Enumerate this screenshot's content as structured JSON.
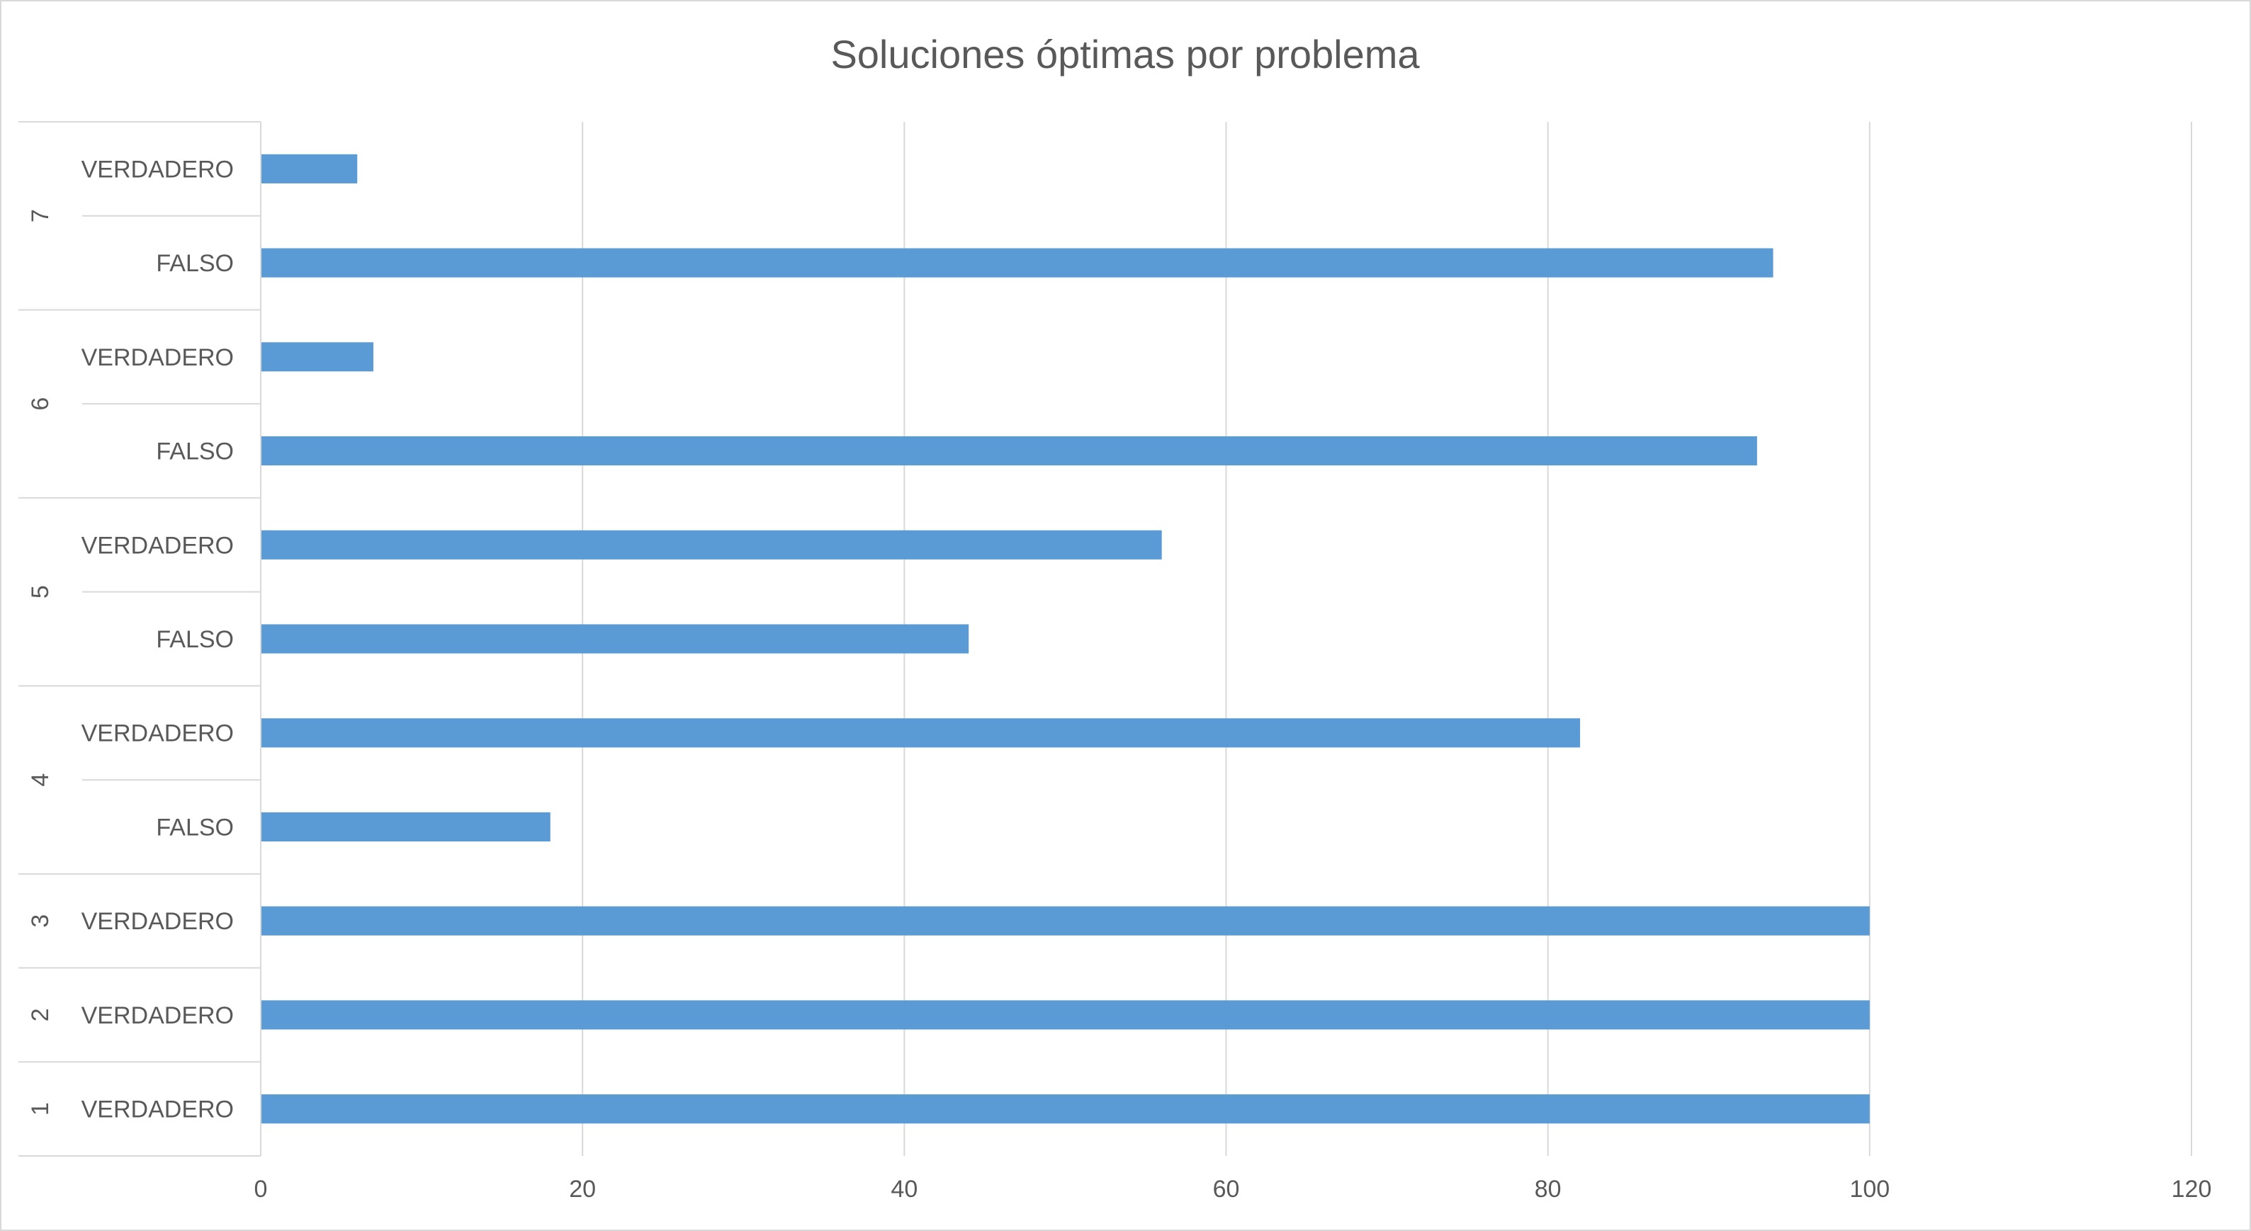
{
  "chart_data": {
    "type": "bar",
    "orientation": "horizontal",
    "title": "Soluciones óptimas por problema",
    "xlabel": "",
    "ylabel": "",
    "xlim": [
      0,
      120
    ],
    "x_ticks": [
      0,
      20,
      40,
      60,
      80,
      100,
      120
    ],
    "grid": true,
    "legend": "none",
    "bar_color": "#5b9bd5",
    "groups": [
      {
        "label": "1",
        "categories": [
          {
            "label": "VERDADERO",
            "value": 100
          }
        ]
      },
      {
        "label": "2",
        "categories": [
          {
            "label": "VERDADERO",
            "value": 100
          }
        ]
      },
      {
        "label": "3",
        "categories": [
          {
            "label": "VERDADERO",
            "value": 100
          }
        ]
      },
      {
        "label": "4",
        "categories": [
          {
            "label": "FALSO",
            "value": 18
          },
          {
            "label": "VERDADERO",
            "value": 82
          }
        ]
      },
      {
        "label": "5",
        "categories": [
          {
            "label": "FALSO",
            "value": 44
          },
          {
            "label": "VERDADERO",
            "value": 56
          }
        ]
      },
      {
        "label": "6",
        "categories": [
          {
            "label": "FALSO",
            "value": 93
          },
          {
            "label": "VERDADERO",
            "value": 7
          }
        ]
      },
      {
        "label": "7",
        "categories": [
          {
            "label": "FALSO",
            "value": 94
          },
          {
            "label": "VERDADERO",
            "value": 6
          }
        ]
      }
    ]
  }
}
